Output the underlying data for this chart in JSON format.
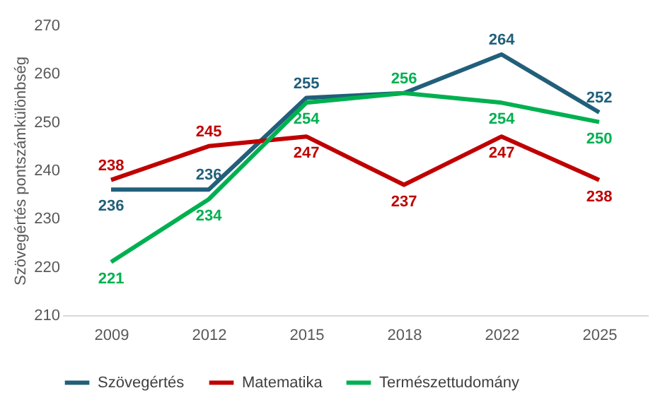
{
  "chart_data": {
    "type": "line",
    "ylabel": "Szövegértés pontszámkülönbség",
    "categories": [
      "2009",
      "2012",
      "2015",
      "2018",
      "2022",
      "2025"
    ],
    "ylim": [
      210,
      270
    ],
    "yticks": [
      210,
      220,
      230,
      240,
      250,
      260,
      270
    ],
    "grid": false,
    "legend": "bottom",
    "marker": "none",
    "line_style": "solid",
    "series": [
      {
        "name": "Szövegértés",
        "color": "#215f7a",
        "values": [
          236,
          236,
          255,
          256,
          264,
          252
        ],
        "value_labels": [
          "236",
          "236",
          "255",
          null,
          "264",
          "252"
        ]
      },
      {
        "name": "Matematika",
        "color": "#c00000",
        "values": [
          238,
          245,
          247,
          237,
          247,
          238
        ],
        "value_labels": [
          "238",
          "245",
          "247",
          "237",
          "247",
          "238"
        ]
      },
      {
        "name": "Természettudomány",
        "color": "#00b050",
        "values": [
          221,
          234,
          254,
          256,
          254,
          250
        ],
        "value_labels": [
          "221",
          "234",
          "254",
          "256",
          "254",
          "250"
        ]
      }
    ]
  }
}
